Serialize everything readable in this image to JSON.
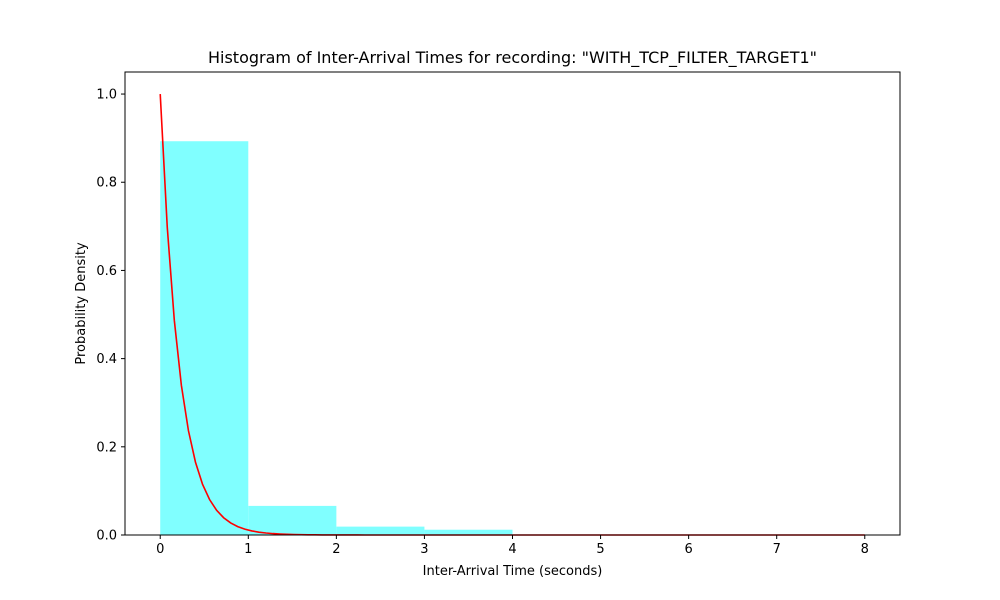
{
  "chart_data": {
    "type": "bar",
    "title": "Histogram of Inter-Arrival Times for recording: \"WITH_TCP_FILTER_TARGET1\"",
    "xlabel": "Inter-Arrival Time (seconds)",
    "ylabel": "Probability Density",
    "xlim": [
      -0.4,
      8.4
    ],
    "ylim": [
      0,
      1.05
    ],
    "xticks": [
      0,
      1,
      2,
      3,
      4,
      5,
      6,
      7,
      8
    ],
    "yticks": [
      0.0,
      0.2,
      0.4,
      0.6,
      0.8,
      1.0
    ],
    "xtick_labels": [
      "0",
      "1",
      "2",
      "3",
      "4",
      "5",
      "6",
      "7",
      "8"
    ],
    "ytick_labels": [
      "0.0",
      "0.2",
      "0.4",
      "0.6",
      "0.8",
      "1.0"
    ],
    "histogram": {
      "bin_edges": [
        0,
        1,
        2,
        3,
        4,
        5,
        6,
        7,
        8
      ],
      "values": [
        0.893,
        0.066,
        0.019,
        0.012,
        0.0,
        0.0,
        0.0,
        0.0
      ],
      "color": "#80ffff"
    },
    "fit_curve": {
      "type": "line",
      "x_start": 0,
      "x_end": 8,
      "y0": 1.0,
      "decay_rate": 4.5,
      "color": "#ff0000"
    },
    "grid": false,
    "legend": "none"
  }
}
